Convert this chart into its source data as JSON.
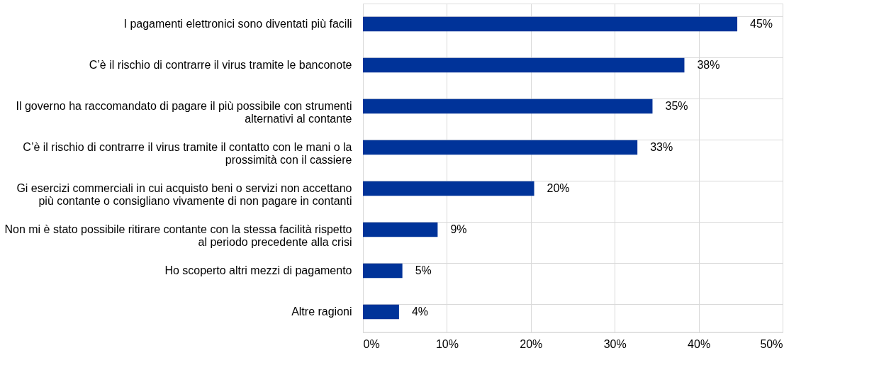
{
  "chart_data": {
    "type": "bar",
    "orientation": "horizontal",
    "categories": [
      "I pagamenti elettronici sono diventati più facili",
      "C’è il rischio di contrarre il virus tramite le banconote",
      "Il governo ha raccomandato di pagare il più possibile con strumenti\nalternativi al contante",
      "C’è il rischio di contrarre il virus tramite il contatto con le mani o la\nprossimità con il cassiere",
      "Gi esercizi commerciali  in cui acquisto beni o servizi non accettano\npiù contante o consigliano vivamente di non pagare in contanti",
      "Non mi è stato possibile ritirare contante con la stessa facilità rispetto\nal periodo precedente alla crisi",
      "Ho scoperto altri mezzi di pagamento",
      "Altre ragioni"
    ],
    "values": [
      44.6,
      38.3,
      34.5,
      32.7,
      20.4,
      8.9,
      4.7,
      4.3
    ],
    "value_labels": [
      "45%",
      "38%",
      "35%",
      "33%",
      "20%",
      "9%",
      "5%",
      "4%"
    ],
    "color": "#003399",
    "xlim": [
      0,
      50
    ],
    "xticks": [
      {
        "value": 0,
        "label": "0%"
      },
      {
        "value": 10,
        "label": "10%"
      },
      {
        "value": 20,
        "label": "20%"
      },
      {
        "value": 30,
        "label": "30%"
      },
      {
        "value": 40,
        "label": "40%"
      },
      {
        "value": 50,
        "label": "50%"
      }
    ],
    "grid": true
  }
}
